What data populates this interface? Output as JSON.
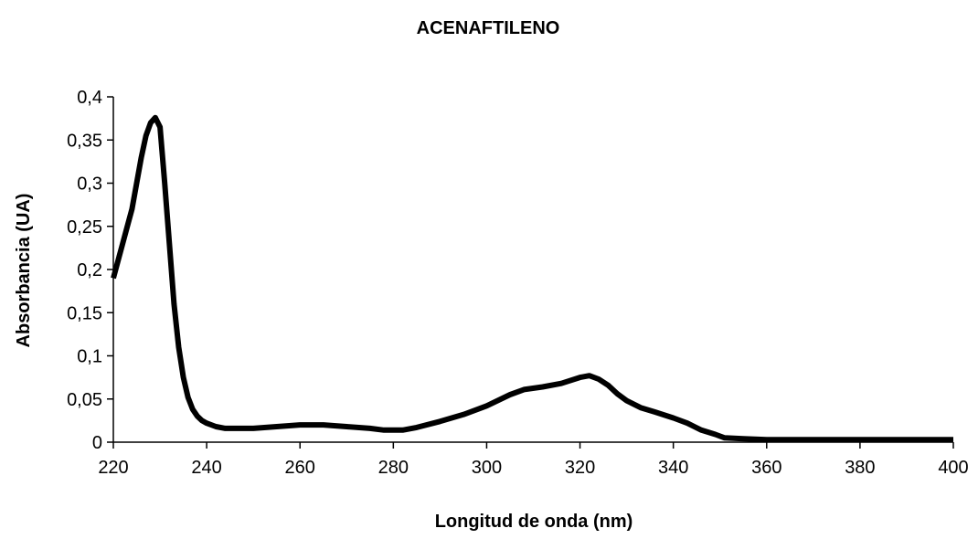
{
  "chart_data": {
    "type": "line",
    "title": "ACENAFTILENO",
    "xlabel": "Longitud de onda (nm)",
    "ylabel": "Absorbancia (UA)",
    "xlim": [
      220,
      400
    ],
    "ylim": [
      0,
      0.4
    ],
    "x_ticks": [
      "220",
      "240",
      "260",
      "280",
      "300",
      "320",
      "340",
      "360",
      "380",
      "400"
    ],
    "y_ticks": [
      "0",
      "0,05",
      "0,1",
      "0,15",
      "0,2",
      "0,25",
      "0,3",
      "0,35",
      "0,4"
    ],
    "grid": false,
    "legend": "none",
    "line_color": "#000000",
    "series": [
      {
        "x": [
          220,
          222,
          224,
          225,
          226,
          227,
          228,
          229,
          230,
          231,
          232,
          233,
          234,
          235,
          236,
          237,
          238,
          239,
          240,
          242,
          244,
          246,
          250,
          255,
          260,
          265,
          270,
          275,
          278,
          282,
          285,
          290,
          295,
          300,
          305,
          308,
          312,
          316,
          320,
          322,
          324,
          326,
          328,
          330,
          333,
          336,
          340,
          343,
          346,
          349,
          351,
          355,
          360,
          370,
          380,
          390,
          400
        ],
        "y": [
          0.19,
          0.23,
          0.27,
          0.3,
          0.33,
          0.355,
          0.37,
          0.376,
          0.365,
          0.3,
          0.23,
          0.16,
          0.11,
          0.075,
          0.052,
          0.038,
          0.03,
          0.025,
          0.022,
          0.018,
          0.016,
          0.016,
          0.016,
          0.018,
          0.02,
          0.02,
          0.018,
          0.016,
          0.014,
          0.014,
          0.017,
          0.024,
          0.032,
          0.042,
          0.055,
          0.061,
          0.064,
          0.068,
          0.075,
          0.077,
          0.073,
          0.066,
          0.056,
          0.048,
          0.04,
          0.035,
          0.028,
          0.022,
          0.014,
          0.009,
          0.005,
          0.004,
          0.003,
          0.003,
          0.003,
          0.003,
          0.003
        ]
      }
    ]
  }
}
